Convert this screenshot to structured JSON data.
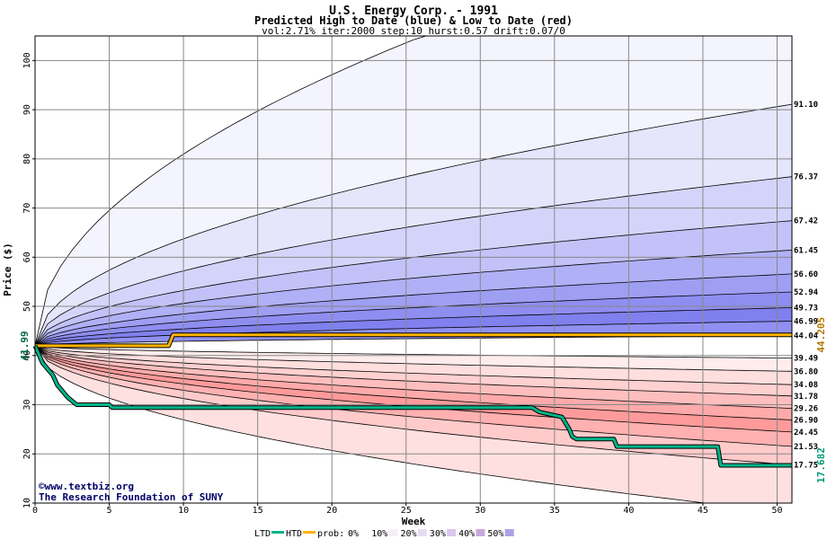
{
  "chart_data": {
    "type": "area",
    "title": "U.S. Energy Corp. - 1991",
    "subtitle": "Predicted High to Date (blue) &  Low to Date (red)",
    "params": "vol:2.71% iter:2000 step:10 hurst:0.57 drift:0.07/0",
    "xlabel": "Week",
    "ylabel": "Price ($)",
    "xlim": [
      0,
      51
    ],
    "ylim": [
      10,
      105
    ],
    "x_ticks": [
      0,
      5,
      10,
      15,
      20,
      25,
      30,
      35,
      40,
      45,
      50
    ],
    "y_ticks": [
      10,
      20,
      30,
      40,
      50,
      60,
      70,
      80,
      90,
      100
    ],
    "start_price_label": "41.99",
    "start_price": 41.99,
    "htd_end_label": "44.205",
    "htd_end": 44.205,
    "ltd_end_label": "17.682",
    "ltd_end": 17.682,
    "high_quantiles": [
      {
        "label": "91.10",
        "end": 91.1
      },
      {
        "label": "76.37",
        "end": 76.37
      },
      {
        "label": "67.42",
        "end": 67.42
      },
      {
        "label": "61.45",
        "end": 61.45
      },
      {
        "label": "56.60",
        "end": 56.6
      },
      {
        "label": "52.94",
        "end": 52.94
      },
      {
        "label": "49.73",
        "end": 49.73
      },
      {
        "label": "46.99",
        "end": 46.99
      },
      {
        "label": "44.04",
        "end": 44.04
      }
    ],
    "low_quantiles": [
      {
        "label": "39.49",
        "end": 39.49
      },
      {
        "label": "36.80",
        "end": 36.8
      },
      {
        "label": "34.08",
        "end": 34.08
      },
      {
        "label": "31.78",
        "end": 31.78
      },
      {
        "label": "29.26",
        "end": 29.26
      },
      {
        "label": "26.90",
        "end": 26.9
      },
      {
        "label": "24.45",
        "end": 24.45
      },
      {
        "label": "21.53",
        "end": 21.53
      },
      {
        "label": "17.75",
        "end": 17.75
      }
    ],
    "outer_high_end": 130,
    "outer_low_end": 8,
    "htd_series": {
      "x": [
        0,
        9,
        9.3,
        51
      ],
      "y": [
        41.99,
        41.99,
        44.205,
        44.205
      ]
    },
    "ltd_series": {
      "x": [
        0,
        0.5,
        1.2,
        1.5,
        2.2,
        2.8,
        5,
        5.2,
        33.5,
        34,
        35.5,
        36,
        36.2,
        36.5,
        39,
        39.2,
        46,
        46.2,
        51
      ],
      "y": [
        41.99,
        38.5,
        36,
        34,
        31.5,
        30,
        30,
        29.4,
        29.4,
        28.5,
        27.5,
        25,
        23.5,
        23,
        23,
        21.5,
        21.5,
        17.682,
        17.682
      ]
    },
    "legend": {
      "ltd": "LTD",
      "htd": "HTD",
      "prob": "prob:",
      "bins": [
        "0%",
        "10%",
        "20%",
        "30%",
        "40%",
        "50%"
      ]
    },
    "colors": {
      "htd": "#ffb400",
      "ltd": "#00b58a",
      "htd_label": "#b37a00",
      "ltd_label": "#009977",
      "blue_bands": [
        "#f4f4fe",
        "#e5e5fc",
        "#d4d4fb",
        "#c2c2f8",
        "#b0b0f6",
        "#9e9ef3",
        "#8e8ef1",
        "#8080ee",
        "#9090f2"
      ],
      "red_bands": [
        "#ffecec",
        "#ffdede",
        "#ffd0d0",
        "#ffbebe",
        "#ffaaaa",
        "#ff9a9a",
        "#ffb0b0",
        "#ffcaca",
        "#ffe0e0",
        "#fff3f3"
      ]
    },
    "grid": true
  },
  "credit": {
    "line1": "©www.textbiz.org",
    "line2": "The Research Foundation of SUNY"
  }
}
